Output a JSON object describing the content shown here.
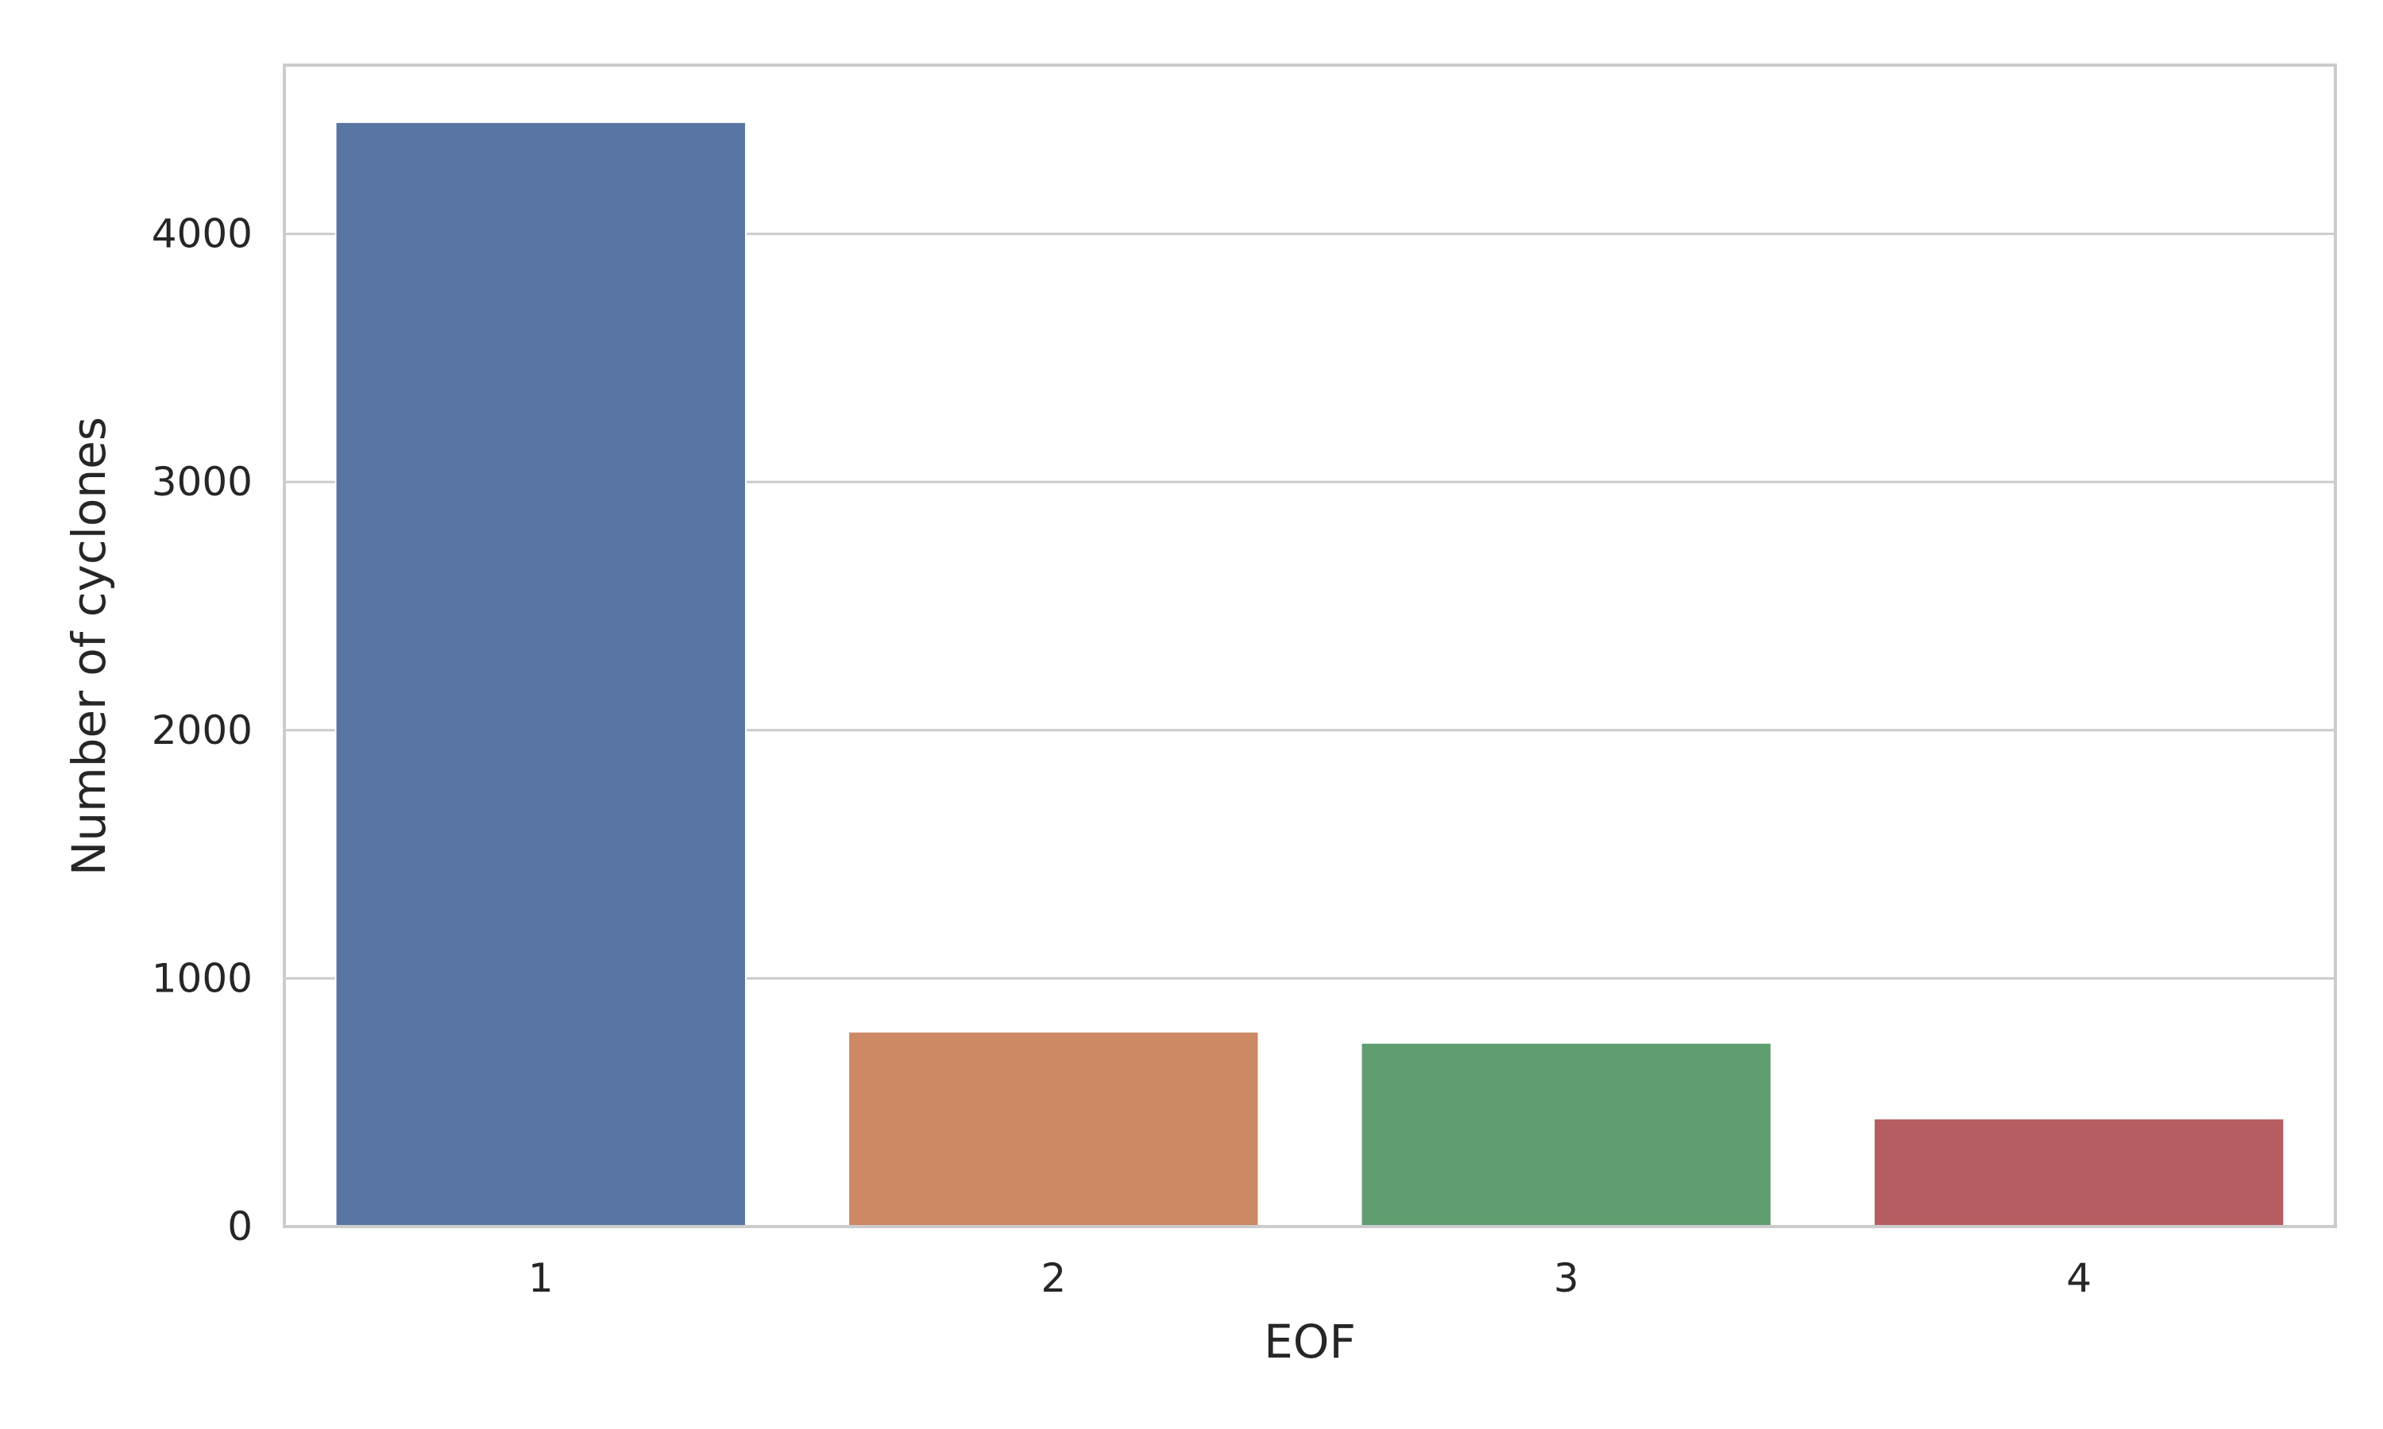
{
  "chart_data": {
    "type": "bar",
    "categories": [
      "1",
      "2",
      "3",
      "4"
    ],
    "values": [
      4450,
      785,
      740,
      435
    ],
    "colors": [
      "#5875a4",
      "#cc8963",
      "#5f9e6e",
      "#b55d60"
    ],
    "title": "",
    "xlabel": "EOF",
    "ylabel": "Number of cyclones",
    "ylim": [
      0,
      4680
    ],
    "yticks": [
      0,
      1000,
      2000,
      3000,
      4000
    ],
    "ytick_labels": [
      "0",
      "1000",
      "2000",
      "3000",
      "4000"
    ],
    "grid": "y",
    "legend": "none"
  }
}
